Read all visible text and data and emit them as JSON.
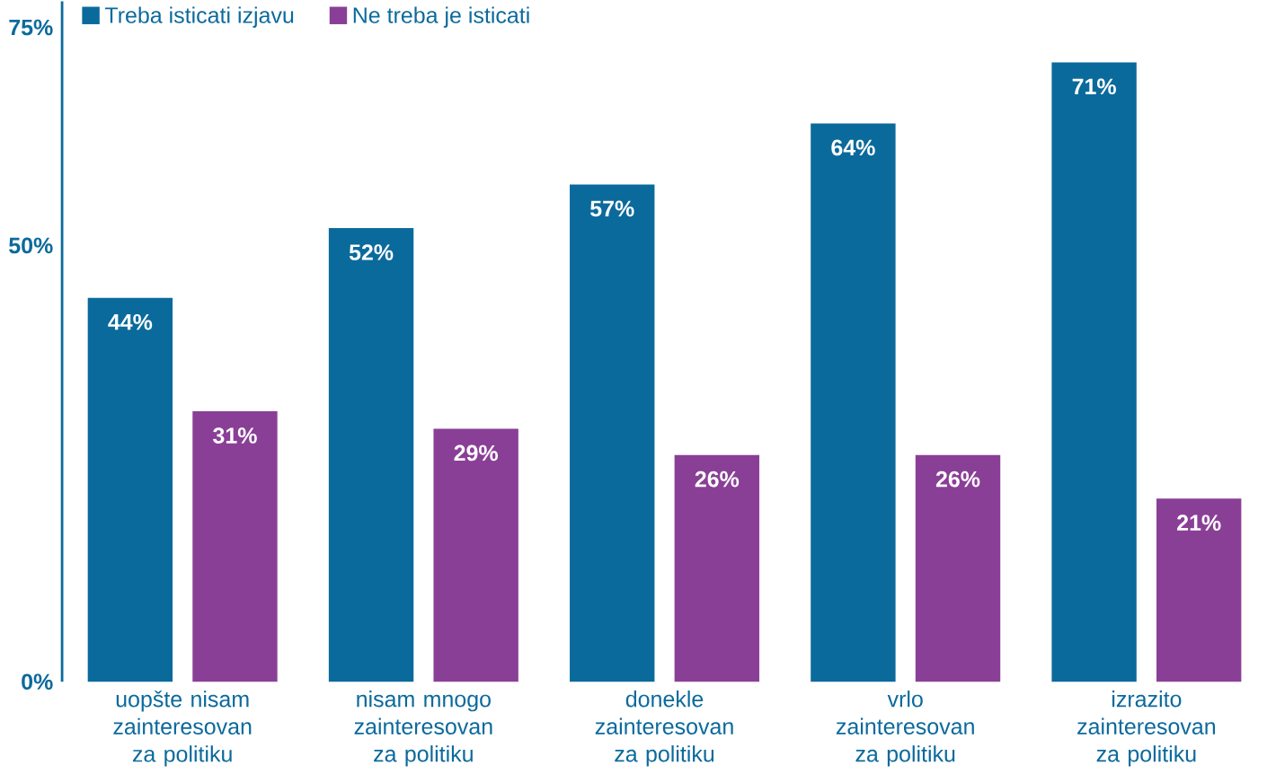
{
  "chart_data": {
    "type": "bar",
    "categories": [
      "uopšte nisam zainteresovan za politiku",
      "nisam mnogo zainteresovan za politiku",
      "donekle zainteresovan za politiku",
      "vrlo zainteresovan za politiku",
      "izrazito zainteresovan za politiku"
    ],
    "series": [
      {
        "name": "Treba isticati izjavu",
        "color": "#0b6a9c",
        "values": [
          44,
          52,
          57,
          64,
          71
        ],
        "value_labels": [
          "44%",
          "52%",
          "57%",
          "64%",
          "71%"
        ]
      },
      {
        "name": "Ne treba je isticati",
        "color": "#8a3f97",
        "values": [
          31,
          29,
          26,
          26,
          21
        ],
        "value_labels": [
          "31%",
          "29%",
          "26%",
          "26%",
          "21%"
        ]
      }
    ],
    "ylim": [
      0,
      78
    ],
    "yticks": [
      {
        "value": 0,
        "label": "0%"
      },
      {
        "value": 50,
        "label": "50%"
      },
      {
        "value": 75,
        "label": "75%"
      }
    ],
    "legend": "top left",
    "grid": false
  }
}
